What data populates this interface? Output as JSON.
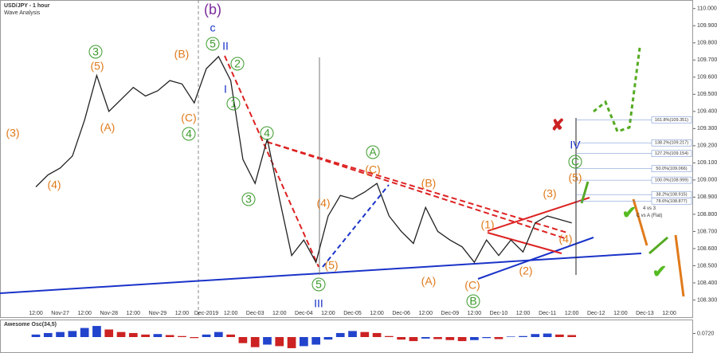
{
  "chart_data": {
    "type": "line",
    "title": "USD/JPY - 1 hour",
    "subtitle": "Wave Analysis",
    "categories": [
      "12:00",
      null,
      "Nov-27",
      null,
      "12:00",
      null,
      "Nov-28",
      null,
      "12:00",
      null,
      "Nov-29",
      null,
      "12:00",
      null,
      "Dec-2019",
      null,
      "12:00",
      null,
      "Dec-03",
      null,
      "12:00",
      null,
      "Dec-04",
      null,
      "12:00",
      null,
      "Dec-05",
      null,
      "12:00",
      null,
      "Dec-06",
      null,
      "12:00",
      null,
      "Dec-09",
      null,
      "12:00",
      null,
      "Dec-10",
      null,
      "12:00",
      null,
      "Dec-11",
      null,
      "12:00",
      null,
      "Dec-12",
      null,
      "12:00",
      null,
      "Dec-13",
      null,
      "12:00"
    ],
    "series": [
      {
        "name": "USD/JPY",
        "color": "#222222",
        "values": [
          108.96,
          109.03,
          109.07,
          109.14,
          109.35,
          109.61,
          109.4,
          109.47,
          109.54,
          109.49,
          109.52,
          109.58,
          109.56,
          109.45,
          109.65,
          109.72,
          109.58,
          109.12,
          108.98,
          109.24,
          108.89,
          108.56,
          108.65,
          108.52,
          108.79,
          108.91,
          108.89,
          108.93,
          108.98,
          108.79,
          108.7,
          108.63,
          108.84,
          108.7,
          108.65,
          108.61,
          108.52,
          108.65,
          108.56,
          108.65,
          108.58,
          108.75,
          108.79,
          108.77,
          108.75,
          null,
          null,
          null,
          null,
          null,
          null,
          null,
          null
        ]
      }
    ],
    "ylim": [
      108.2,
      110.05
    ],
    "yticks": [
      {
        "value": 110.0,
        "label": "110.000"
      },
      {
        "value": 109.9,
        "label": "109.900"
      },
      {
        "value": 109.8,
        "label": "109.800"
      },
      {
        "value": 109.7,
        "label": "109.700"
      },
      {
        "value": 109.6,
        "label": "109.600"
      },
      {
        "value": 109.5,
        "label": "109.500"
      },
      {
        "value": 109.4,
        "label": "109.400"
      },
      {
        "value": 109.3,
        "label": "109.300"
      },
      {
        "value": 109.2,
        "label": "109.200"
      },
      {
        "value": 109.1,
        "label": "109.100"
      },
      {
        "value": 109.0,
        "label": "109.000"
      },
      {
        "value": 108.9,
        "label": "108.900"
      },
      {
        "value": 108.8,
        "label": "108.800"
      },
      {
        "value": 108.7,
        "label": "108.700"
      },
      {
        "value": 108.6,
        "label": "108.600"
      },
      {
        "value": 108.5,
        "label": "108.500"
      },
      {
        "value": 108.4,
        "label": "108.400"
      },
      {
        "value": 108.3,
        "label": "108.300"
      }
    ],
    "fib_levels": [
      {
        "value": 109.351,
        "label": "161.8%(109.351)"
      },
      {
        "value": 109.217,
        "label": "138.2%(109.217)"
      },
      {
        "value": 109.154,
        "label": "127.2%(109.154)"
      },
      {
        "value": 109.066,
        "label": "50.0%(109.066)"
      },
      {
        "value": 108.999,
        "label": "100.0%(108.999)"
      },
      {
        "value": 108.915,
        "label": "38.2%(108.915)"
      },
      {
        "value": 108.877,
        "label": "78.6%(108.877)"
      }
    ],
    "notes": [
      "4 vs 3",
      "C vs A (Flat)"
    ],
    "wave_labels": [
      "(b)",
      "c",
      "II",
      "5",
      "2",
      "I",
      "1",
      "3",
      "(5)",
      "(B)",
      "(A)",
      "(C)",
      "4",
      "(3)",
      "(4)",
      "4",
      "3",
      "(4)",
      "(5)",
      "5",
      "III",
      "A",
      "(C)",
      "(B)",
      "(A)",
      "(C)",
      "B",
      "(1)",
      "(2)",
      "(3)",
      "(4)",
      "(5)",
      "C",
      "IV"
    ],
    "oscillator": {
      "name": "Awesome Osc(34,5)",
      "values": [
        0.05,
        0.08,
        0.1,
        0.12,
        0.18,
        0.22,
        0.15,
        0.1,
        0.08,
        0.05,
        0.06,
        0.04,
        0.02,
        -0.02,
        0.05,
        0.1,
        0.05,
        -0.12,
        -0.2,
        -0.15,
        -0.18,
        -0.22,
        -0.18,
        -0.15,
        -0.05,
        0.08,
        0.12,
        0.1,
        0.08,
        0.02,
        -0.05,
        -0.08,
        -0.03,
        -0.04,
        -0.06,
        -0.08,
        -0.06,
        -0.02,
        -0.04,
        0.01,
        0.02,
        0.06,
        0.07,
        0.05,
        0.04,
        null,
        null,
        null,
        null,
        null,
        null,
        null,
        null
      ],
      "ylim": [
        -0.3,
        0.3
      ],
      "yticks": [
        {
          "value": 0.072,
          "label": "0.0720"
        }
      ]
    }
  }
}
